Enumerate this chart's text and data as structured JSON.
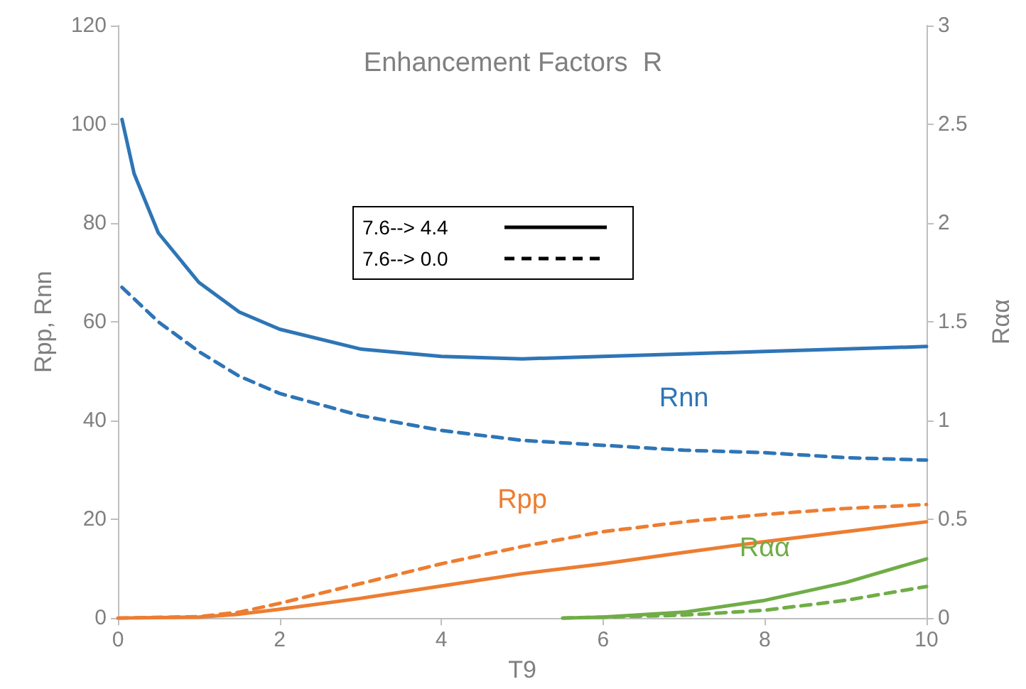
{
  "chart_data": {
    "type": "line",
    "title": "Enhancement Factors  R",
    "xlabel": "T9",
    "ylabel": "Rpp, Rnn",
    "y2label": "Rαα",
    "xlim": [
      0,
      10
    ],
    "xticks": [
      0,
      2,
      4,
      6,
      8,
      10
    ],
    "ylim": [
      0,
      120
    ],
    "yticks": [
      0,
      20,
      40,
      60,
      80,
      100,
      120
    ],
    "y2lim": [
      0,
      3
    ],
    "y2ticks": [
      0,
      0.5,
      1,
      1.5,
      2,
      2.5,
      3
    ],
    "grid": false,
    "legend": false,
    "marker": "none",
    "series": [
      {
        "color": "#2e75b6",
        "line_style": "solid",
        "x": [
          0.05,
          0.2,
          0.5,
          1,
          1.5,
          2,
          3,
          4,
          5,
          6,
          7,
          8,
          9,
          10
        ],
        "values": [
          101,
          90,
          78,
          68,
          62,
          58.5,
          54.5,
          53,
          52.5,
          53,
          53.5,
          54,
          54.5,
          55
        ]
      },
      {
        "name": "Rnn",
        "color": "#2e75b6",
        "line_style": "dashed",
        "x": [
          0.05,
          0.5,
          1,
          1.5,
          2,
          3,
          4,
          5,
          6,
          7,
          8,
          9,
          10
        ],
        "values": [
          67,
          60,
          54,
          49,
          45.5,
          41,
          38,
          36,
          35,
          34,
          33.5,
          32.5,
          32
        ]
      },
      {
        "color": "#ed7d31",
        "line_style": "solid",
        "x": [
          0,
          1,
          1.5,
          2,
          3,
          4,
          5,
          6,
          7,
          8,
          9,
          10
        ],
        "values": [
          0,
          0.2,
          0.8,
          1.8,
          4,
          6.5,
          9,
          11,
          13.3,
          15.5,
          17.5,
          19.5
        ]
      },
      {
        "name": "Rpp",
        "color": "#ed7d31",
        "line_style": "dashed",
        "x": [
          0,
          1,
          1.5,
          2,
          3,
          4,
          5,
          6,
          7,
          8,
          9,
          10
        ],
        "values": [
          0,
          0.3,
          1.2,
          3,
          7,
          11,
          14.5,
          17.5,
          19.5,
          21,
          22.2,
          23
        ]
      },
      {
        "name": "Rαα",
        "color": "#70ad47",
        "line_style": "solid",
        "axis": "y2",
        "x": [
          5.5,
          6,
          7,
          8,
          9,
          10
        ],
        "values": [
          0,
          0.005,
          0.03,
          0.09,
          0.18,
          0.3
        ]
      },
      {
        "color": "#70ad47",
        "line_style": "dashed",
        "axis": "y2",
        "x": [
          5.5,
          7,
          8,
          9,
          10
        ],
        "values": [
          0,
          0.015,
          0.04,
          0.09,
          0.16
        ]
      }
    ],
    "annotations": [
      "7.6--> 4.4",
      "7.6--> 0.0"
    ]
  }
}
